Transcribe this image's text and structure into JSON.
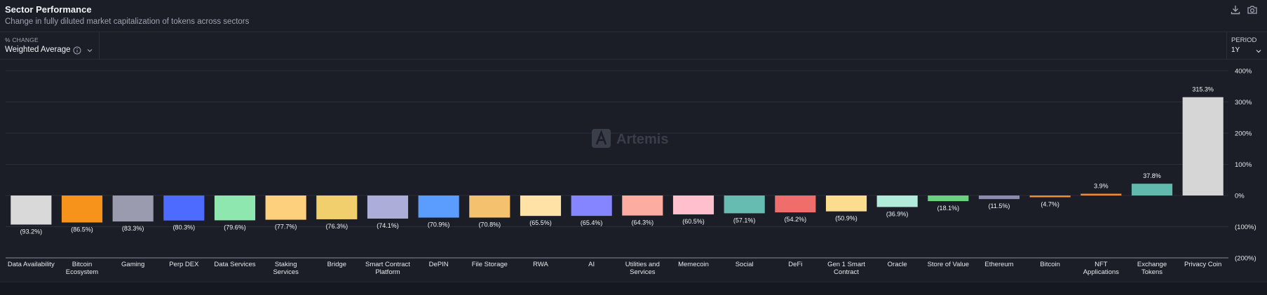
{
  "header": {
    "title": "Sector Performance",
    "subtitle": "Change in fully diluted market capitalization of tokens across sectors",
    "download_icon": "download-icon",
    "camera_icon": "camera-icon"
  },
  "controls": {
    "change_label": "% CHANGE",
    "change_value": "Weighted Average",
    "period_label": "PERIOD",
    "period_value": "1Y"
  },
  "watermark": "Artemis",
  "chart_data": {
    "type": "bar",
    "title": "Sector Performance",
    "ylim": [
      -200,
      400
    ],
    "yticks": [
      400,
      300,
      200,
      100,
      0,
      -100,
      -200
    ],
    "ytick_labels": [
      "400%",
      "300%",
      "200%",
      "100%",
      "0%",
      "(100%)",
      "(200%)"
    ],
    "grid": true,
    "categories": [
      "Data Availability",
      "Bitcoin Ecosystem",
      "Gaming",
      "Perp DEX",
      "Data Services",
      "Staking Services",
      "Bridge",
      "Smart Contract Platform",
      "DePIN",
      "File Storage",
      "RWA",
      "AI",
      "Utilities and Services",
      "Memecoin",
      "Social",
      "DeFi",
      "Gen 1 Smart Contract",
      "Oracle",
      "Store of Value",
      "Ethereum",
      "Bitcoin",
      "NFT Applications",
      "Exchange Tokens",
      "Privacy Coin"
    ],
    "category_lines": [
      [
        "Data Availability"
      ],
      [
        "Bitcoin",
        "Ecosystem"
      ],
      [
        "Gaming"
      ],
      [
        "Perp DEX"
      ],
      [
        "Data Services"
      ],
      [
        "Staking",
        "Services"
      ],
      [
        "Bridge"
      ],
      [
        "Smart Contract",
        "Platform"
      ],
      [
        "DePIN"
      ],
      [
        "File Storage"
      ],
      [
        "RWA"
      ],
      [
        "AI"
      ],
      [
        "Utilities and",
        "Services"
      ],
      [
        "Memecoin"
      ],
      [
        "Social"
      ],
      [
        "DeFi"
      ],
      [
        "Gen 1 Smart",
        "Contract"
      ],
      [
        "Oracle"
      ],
      [
        "Store of Value"
      ],
      [
        "Ethereum"
      ],
      [
        "Bitcoin"
      ],
      [
        "NFT",
        "Applications"
      ],
      [
        "Exchange",
        "Tokens"
      ],
      [
        "Privacy Coin"
      ]
    ],
    "values": [
      -93.2,
      -86.5,
      -83.3,
      -80.3,
      -79.6,
      -77.7,
      -76.3,
      -74.1,
      -70.9,
      -70.8,
      -65.5,
      -65.4,
      -64.3,
      -60.5,
      -57.1,
      -54.2,
      -50.9,
      -36.9,
      -18.1,
      -11.5,
      -4.7,
      3.9,
      37.8,
      315.3
    ],
    "labels": [
      "(93.2%)",
      "(86.5%)",
      "(83.3%)",
      "(80.3%)",
      "(79.6%)",
      "(77.7%)",
      "(76.3%)",
      "(74.1%)",
      "(70.9%)",
      "(70.8%)",
      "(65.5%)",
      "(65.4%)",
      "(64.3%)",
      "(60.5%)",
      "(57.1%)",
      "(54.2%)",
      "(50.9%)",
      "(36.9%)",
      "(18.1%)",
      "(11.5%)",
      "(4.7%)",
      "3.9%",
      "37.8%",
      "315.3%"
    ],
    "colors": [
      "#d9d9d9",
      "#f7931a",
      "#9b9bb0",
      "#4d6bfe",
      "#8ee7ae",
      "#fdd07e",
      "#f0cf6c",
      "#adadd9",
      "#5b9dff",
      "#f4c26e",
      "#fee2a6",
      "#8586ff",
      "#fcaca0",
      "#ffbfcd",
      "#67bcb1",
      "#ef6e6c",
      "#fcdd8e",
      "#b1ebd9",
      "#69d27f",
      "#8b8bb0",
      "#f08c34",
      "#f08c34",
      "#61b8ad",
      "#d6d6d6"
    ]
  }
}
